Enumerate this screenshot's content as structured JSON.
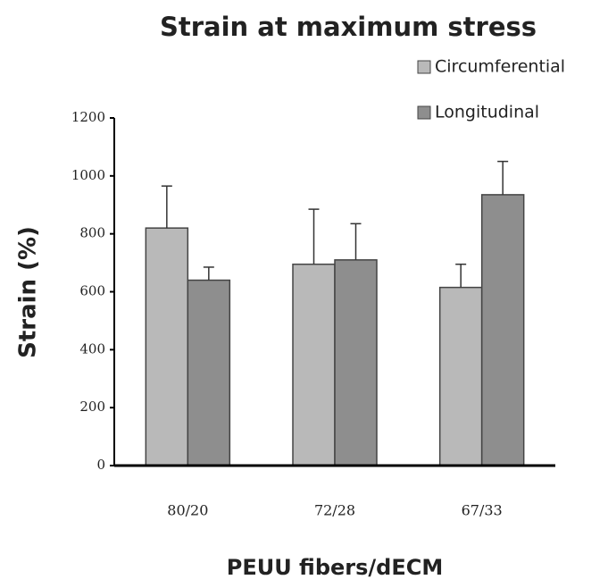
{
  "chart_data": {
    "type": "bar",
    "title": "Strain at maximum stress",
    "x_label": "PEUU fibers/dECM",
    "y_label": "Strain (%)",
    "categories": [
      "80/20",
      "72/28",
      "67/33"
    ],
    "series": [
      {
        "name": "Circumferential",
        "color": "#b9b9b9",
        "values": [
          820,
          695,
          615
        ],
        "errors": [
          145,
          190,
          80
        ]
      },
      {
        "name": "Longitudinal",
        "color": "#8e8e8e",
        "values": [
          640,
          710,
          935
        ],
        "errors": [
          45,
          125,
          115
        ]
      }
    ],
    "ylim": [
      0,
      1200
    ],
    "yticks": [
      0,
      200,
      400,
      600,
      800,
      1000,
      1200
    ],
    "grid": false,
    "legend": "top-right"
  }
}
